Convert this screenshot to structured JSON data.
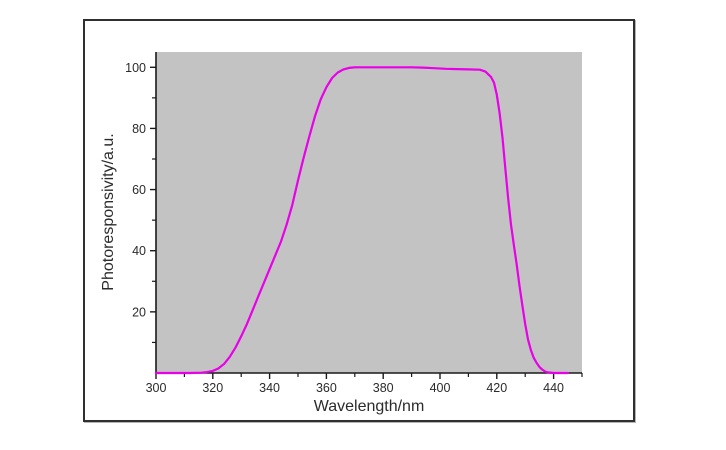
{
  "figure": {
    "background": "#ffffff",
    "frame_border_color": "#2f2f2f",
    "plot_bg_color": "#c3c3c3",
    "axis_color": "#1a1a1a",
    "text_color": "#2b2b2b",
    "curve_color": "#e800e8"
  },
  "chart_data": {
    "type": "line",
    "title": "",
    "xlabel": "Wavelength/nm",
    "ylabel": "Photoresponsivity/a.u.",
    "xlim": [
      300,
      450
    ],
    "ylim": [
      0,
      105
    ],
    "x_major_ticks": [
      300,
      320,
      340,
      360,
      380,
      400,
      420,
      440
    ],
    "x_minor_ticks": [
      310,
      330,
      350,
      370,
      390,
      410,
      430,
      450
    ],
    "y_major_ticks": [
      20,
      40,
      60,
      80,
      100
    ],
    "y_minor_ticks": [
      10,
      30,
      50,
      70,
      90
    ],
    "grid": false,
    "legend": "none",
    "series": [
      {
        "name": "photoresponsivity",
        "color": "#e800e8",
        "points": [
          [
            300,
            0
          ],
          [
            304,
            0
          ],
          [
            308,
            0
          ],
          [
            312,
            0
          ],
          [
            316,
            0.1
          ],
          [
            318,
            0.3
          ],
          [
            320,
            0.7
          ],
          [
            322,
            1.5
          ],
          [
            324,
            3
          ],
          [
            326,
            5.3
          ],
          [
            328,
            8.3
          ],
          [
            330,
            12
          ],
          [
            332,
            16
          ],
          [
            334,
            20.5
          ],
          [
            336,
            25
          ],
          [
            338,
            29.5
          ],
          [
            340,
            34
          ],
          [
            342,
            38.5
          ],
          [
            344,
            43
          ],
          [
            346,
            48.5
          ],
          [
            348,
            55
          ],
          [
            350,
            63
          ],
          [
            352,
            70.5
          ],
          [
            354,
            77.5
          ],
          [
            356,
            84
          ],
          [
            358,
            89.5
          ],
          [
            360,
            93.5
          ],
          [
            362,
            96.5
          ],
          [
            364,
            98.3
          ],
          [
            366,
            99.3
          ],
          [
            368,
            99.8
          ],
          [
            370,
            100
          ],
          [
            374,
            100
          ],
          [
            378,
            100
          ],
          [
            382,
            100
          ],
          [
            386,
            100
          ],
          [
            390,
            100
          ],
          [
            394,
            99.9
          ],
          [
            398,
            99.7
          ],
          [
            402,
            99.5
          ],
          [
            406,
            99.4
          ],
          [
            410,
            99.3
          ],
          [
            414,
            99.2
          ],
          [
            416,
            98.6
          ],
          [
            418,
            96.8
          ],
          [
            419,
            95
          ],
          [
            420,
            91
          ],
          [
            421,
            85
          ],
          [
            422,
            77
          ],
          [
            423,
            67
          ],
          [
            424,
            57
          ],
          [
            425,
            48.5
          ],
          [
            426,
            42
          ],
          [
            427,
            35.5
          ],
          [
            428,
            28.5
          ],
          [
            429,
            22
          ],
          [
            430,
            16
          ],
          [
            431,
            11
          ],
          [
            432,
            7.5
          ],
          [
            433,
            5
          ],
          [
            434,
            3.3
          ],
          [
            435,
            2
          ],
          [
            436,
            1.1
          ],
          [
            437,
            0.5
          ],
          [
            438,
            0.2
          ],
          [
            440,
            0
          ],
          [
            442,
            0
          ],
          [
            445,
            0
          ]
        ]
      }
    ]
  }
}
